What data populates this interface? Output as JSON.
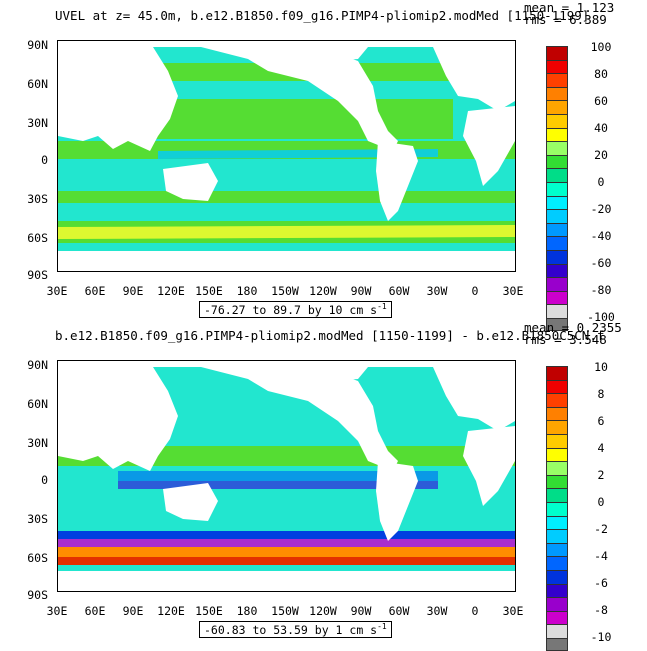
{
  "colors": {
    "scale": [
      "#ff0000",
      "#e33000",
      "#f06000",
      "#ff8c00",
      "#ffb000",
      "#ffd800",
      "#ffff30",
      "#e0e050",
      "#55dd33",
      "#22cc22",
      "#44d9aa",
      "#33ffee",
      "#00ccff",
      "#00aaff",
      "#0078f0",
      "#0040e0",
      "#3300dd",
      "#8800cc",
      "#cc00cc",
      "#dddddd",
      "#777777"
    ],
    "land": "#ffffff",
    "ocean_main": "#22e6cf",
    "ocean_band": "#4fdb39"
  },
  "top": {
    "title": "UVEL at z=  45.0m, b.e12.B1850.f09_g16.PIMP4-pliomip2.modMed [1150-1199]",
    "mean": "mean = 1.123",
    "rms": "rms = 6.389",
    "range_label": "-76.27 to 89.7 by 10 cm s",
    "range_unit_exp": "-1",
    "colorbar_labels": [
      "100",
      "80",
      "60",
      "40",
      "20",
      "0",
      "-20",
      "-40",
      "-60",
      "-80",
      "-100"
    ]
  },
  "bottom": {
    "title": "b.e12.B1850.f09_g16.PIMP4-pliomip2.modMed [1150-1199] - b.e12.B1850C5CN.f",
    "mean": "mean = 0.2355",
    "rms": "rms = 3.548",
    "range_label": "-60.83 to 53.59 by 1 cm s",
    "range_unit_exp": "-1",
    "colorbar_labels": [
      "10",
      "8",
      "6",
      "4",
      "2",
      "0",
      "-2",
      "-4",
      "-6",
      "-8",
      "-10"
    ]
  },
  "axes": {
    "lat_labels": [
      "90N",
      "60N",
      "30N",
      "0",
      "30S",
      "60S",
      "90S"
    ],
    "lon_labels": [
      "30E",
      "60E",
      "90E",
      "120E",
      "150E",
      "180",
      "150W",
      "120W",
      "90W",
      "60W",
      "30W",
      "0",
      "30E"
    ]
  }
}
